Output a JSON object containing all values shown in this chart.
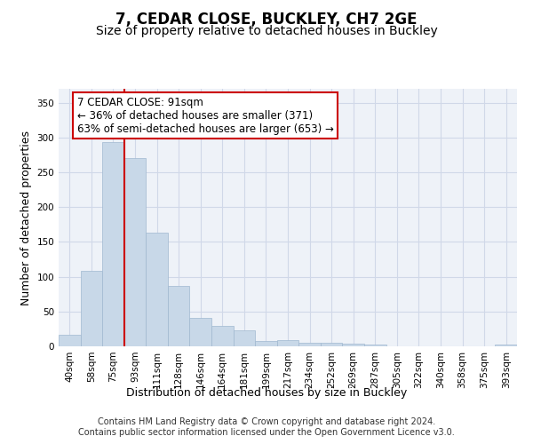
{
  "title1": "7, CEDAR CLOSE, BUCKLEY, CH7 2GE",
  "title2": "Size of property relative to detached houses in Buckley",
  "xlabel": "Distribution of detached houses by size in Buckley",
  "ylabel": "Number of detached properties",
  "categories": [
    "40sqm",
    "58sqm",
    "75sqm",
    "93sqm",
    "111sqm",
    "128sqm",
    "146sqm",
    "164sqm",
    "181sqm",
    "199sqm",
    "217sqm",
    "234sqm",
    "252sqm",
    "269sqm",
    "287sqm",
    "305sqm",
    "322sqm",
    "340sqm",
    "358sqm",
    "375sqm",
    "393sqm"
  ],
  "values": [
    16,
    108,
    293,
    270,
    163,
    87,
    41,
    29,
    23,
    8,
    9,
    5,
    5,
    4,
    3,
    0,
    0,
    0,
    0,
    0,
    3
  ],
  "bar_color": "#c8d8e8",
  "bar_edge_color": "#a0b8d0",
  "vline_color": "#cc0000",
  "annotation_text": "7 CEDAR CLOSE: 91sqm\n← 36% of detached houses are smaller (371)\n63% of semi-detached houses are larger (653) →",
  "annotation_box_color": "white",
  "annotation_box_edge": "#cc0000",
  "ylim": [
    0,
    370
  ],
  "yticks": [
    0,
    50,
    100,
    150,
    200,
    250,
    300,
    350
  ],
  "grid_color": "#d0d8e8",
  "bg_color": "#eef2f8",
  "footnote1": "Contains HM Land Registry data © Crown copyright and database right 2024.",
  "footnote2": "Contains public sector information licensed under the Open Government Licence v3.0.",
  "title1_fontsize": 12,
  "title2_fontsize": 10,
  "xlabel_fontsize": 9,
  "ylabel_fontsize": 9,
  "tick_fontsize": 7.5,
  "annotation_fontsize": 8.5,
  "footnote_fontsize": 7
}
